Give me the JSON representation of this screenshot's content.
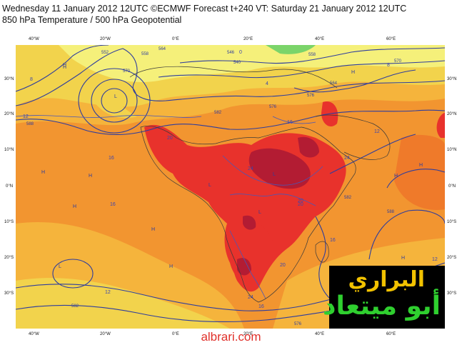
{
  "header": {
    "line1": "Wednesday 11 January 2012 12UTC ©ECMWF Forecast t+240 VT: Saturday 21 January 2012 12UTC",
    "line2": "850 hPa Temperature / 500 hPa Geopotential"
  },
  "axes": {
    "lon_top": [
      "40°W",
      "20°W",
      "0°E",
      "20°E",
      "40°E",
      "60°E"
    ],
    "lon_bottom": [
      "40°W",
      "20°W",
      "0°E",
      "20°E",
      "40°E",
      "60°E"
    ],
    "lat_left": [
      "30°N",
      "20°N",
      "10°N",
      "0°N",
      "10°S",
      "20°S",
      "30°S"
    ],
    "lat_right": [
      "30°N",
      "20°N",
      "10°N",
      "0°N",
      "10°S",
      "20°S",
      "30°S"
    ]
  },
  "contour_labels": [
    "576",
    "582",
    "588",
    "570",
    "564",
    "558",
    "552",
    "546",
    "540",
    "576",
    "582",
    "588",
    "582",
    "576",
    "570",
    "564",
    "558"
  ],
  "temp_labels": [
    "8",
    "4",
    "0",
    "12",
    "16",
    "20",
    "24",
    "16",
    "20",
    "24",
    "16",
    "12",
    "8",
    "12",
    "16",
    "20",
    "24",
    "20",
    "16",
    "12"
  ],
  "pressure_marks": [
    "H",
    "H",
    "H",
    "H",
    "H",
    "H",
    "H",
    "H",
    "H",
    "H",
    "H",
    "L",
    "L",
    "L",
    "L",
    "L"
  ],
  "colors": {
    "yellow_light": "#f5f07a",
    "yellow": "#f2d34c",
    "orange_light": "#f5b43c",
    "orange": "#f29530",
    "orange_dark": "#ef7a2a",
    "red": "#e8322c",
    "dark_red": "#b31c33",
    "contour": "#2e3d9e",
    "green": "#7bd46a"
  },
  "watermark": {
    "line1": "البراري",
    "line2": "أبو ميتعاد"
  },
  "site": "albrari.com"
}
